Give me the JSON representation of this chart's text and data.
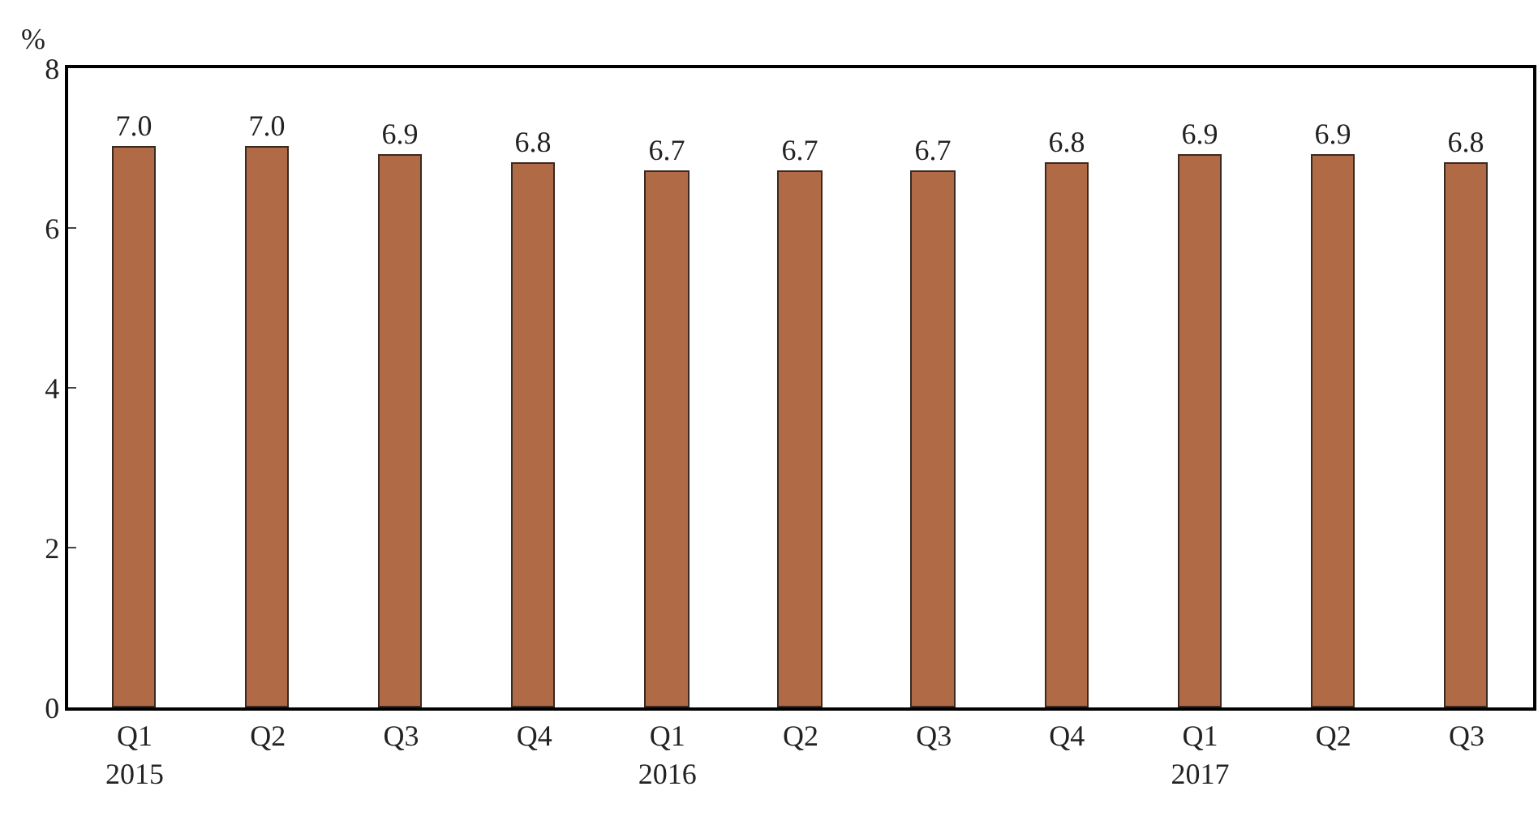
{
  "chart_data": {
    "type": "bar",
    "ylabel": "%",
    "categories": [
      "Q1\n2015",
      "Q2",
      "Q3",
      "Q4",
      "Q1\n2016",
      "Q2",
      "Q3",
      "Q4",
      "Q1\n2017",
      "Q2",
      "Q3"
    ],
    "values": [
      7.0,
      7.0,
      6.9,
      6.8,
      6.7,
      6.7,
      6.7,
      6.8,
      6.9,
      6.9,
      6.8
    ],
    "value_labels": [
      "7.0",
      "7.0",
      "6.9",
      "6.8",
      "6.7",
      "6.7",
      "6.7",
      "6.8",
      "6.9",
      "6.9",
      "6.8"
    ],
    "color": "#b06a45",
    "ylim": [
      0,
      8
    ],
    "yticks": [
      0,
      2,
      4,
      6,
      8
    ]
  }
}
